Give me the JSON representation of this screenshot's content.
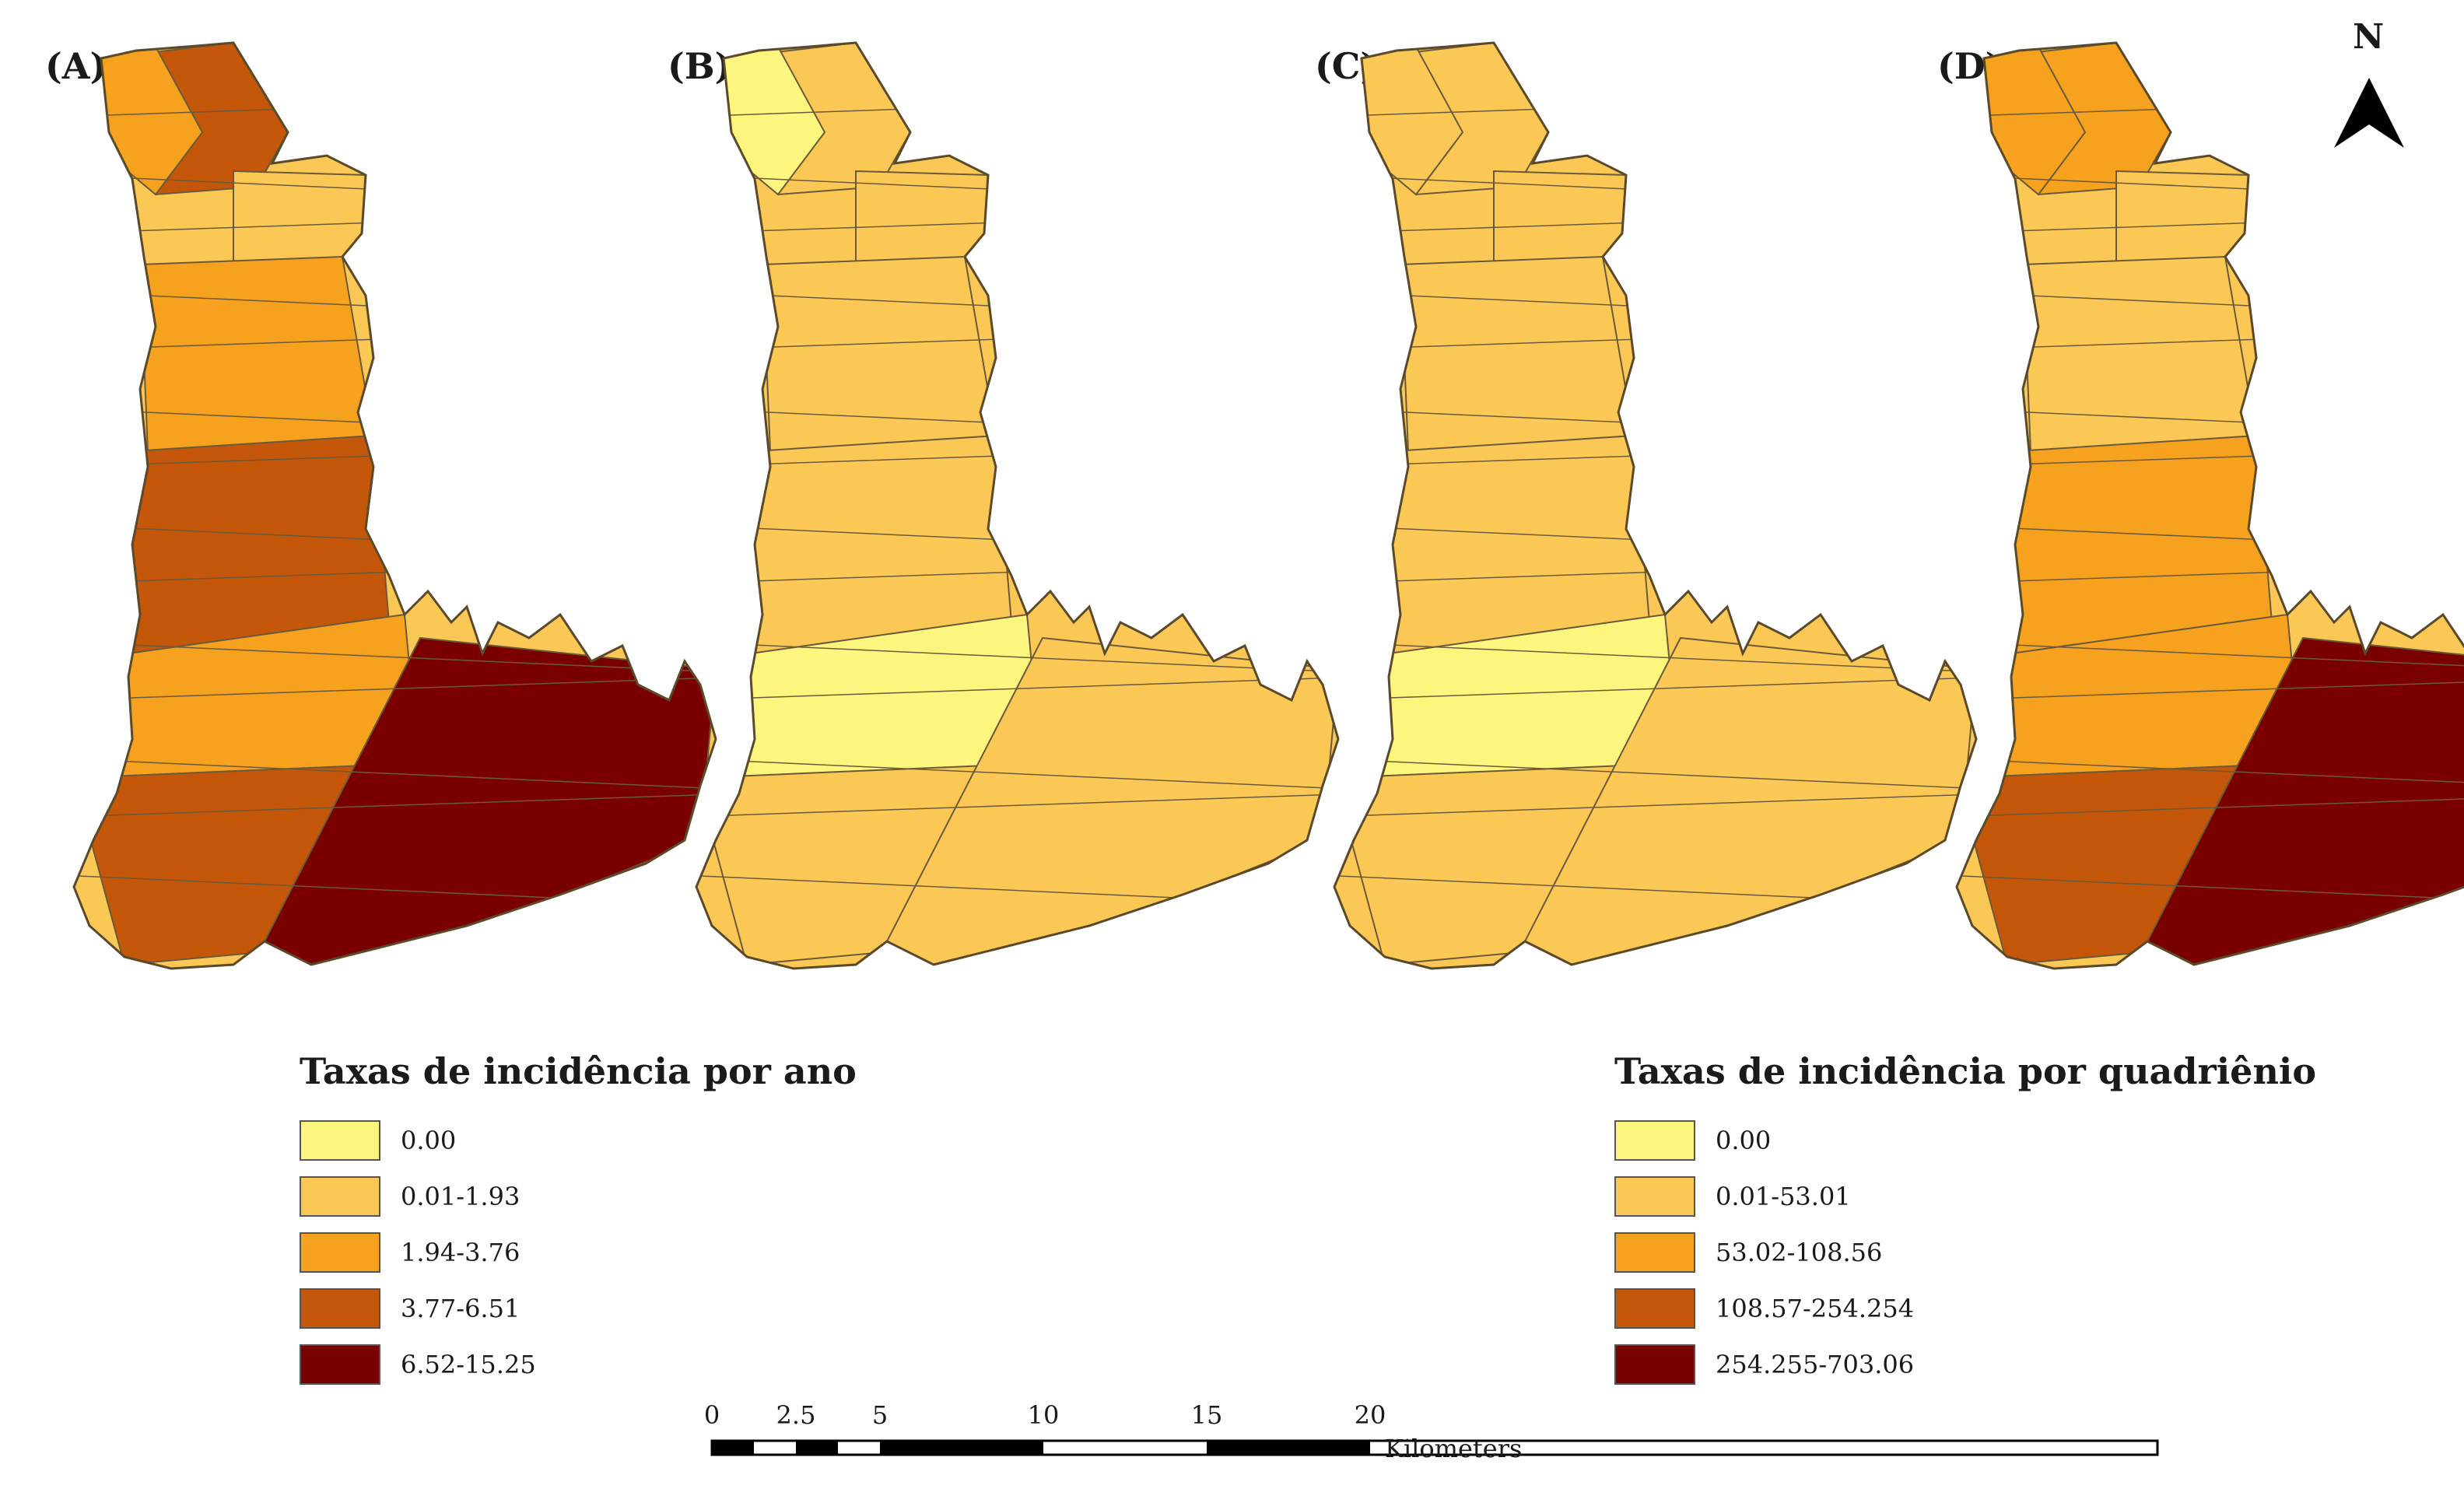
{
  "panels": [
    {
      "label": "(A)",
      "fills": [
        "#c4570a",
        "#f6a21e",
        "#fbc856",
        "#f6a21e",
        "#c4570a",
        "#f6a21e",
        "#c4570a",
        "#7a0000"
      ]
    },
    {
      "label": "(B)",
      "fills": [
        "#fbc856",
        "#fdf67e",
        "#fbc856",
        "#fbc856",
        "#fbc856",
        "#fdf67e",
        "#fbc856",
        "#fbc856"
      ]
    },
    {
      "label": "(C)",
      "fills": [
        "#fbc856",
        "#fbc856",
        "#fbc856",
        "#fbc856",
        "#fbc856",
        "#fdf67e",
        "#fbc856",
        "#fbc856"
      ]
    },
    {
      "label": "(D)",
      "fills": [
        "#f6a21e",
        "#f6a21e",
        "#fbc856",
        "#fbc856",
        "#f6a21e",
        "#f6a21e",
        "#c4570a",
        "#7a0000"
      ]
    }
  ],
  "legend_year": {
    "title": "Taxas de incidência por ano",
    "items": [
      {
        "label": "0.00",
        "color": "#fdf67e"
      },
      {
        "label": "0.01-1.93",
        "color": "#fbc856"
      },
      {
        "label": "1.94-3.76",
        "color": "#f6a21e"
      },
      {
        "label": "3.77-6.51",
        "color": "#c4570a"
      },
      {
        "label": "6.52-15.25",
        "color": "#7a0000"
      }
    ]
  },
  "legend_quad": {
    "title": "Taxas de incidência por quadriênio",
    "items": [
      {
        "label": "0.00",
        "color": "#fdf67e"
      },
      {
        "label": "0.01-53.01",
        "color": "#fbc856"
      },
      {
        "label": "53.02-108.56",
        "color": "#f6a21e"
      },
      {
        "label": "108.57-254.254",
        "color": "#c4570a"
      },
      {
        "label": "254.255-703.06",
        "color": "#7a0000"
      }
    ]
  },
  "north_arrow": {
    "label": "N"
  },
  "scale_bar": {
    "ticks": [
      "0",
      "2.5",
      "5",
      "10",
      "15",
      "20"
    ],
    "unit": "Kilometers"
  }
}
